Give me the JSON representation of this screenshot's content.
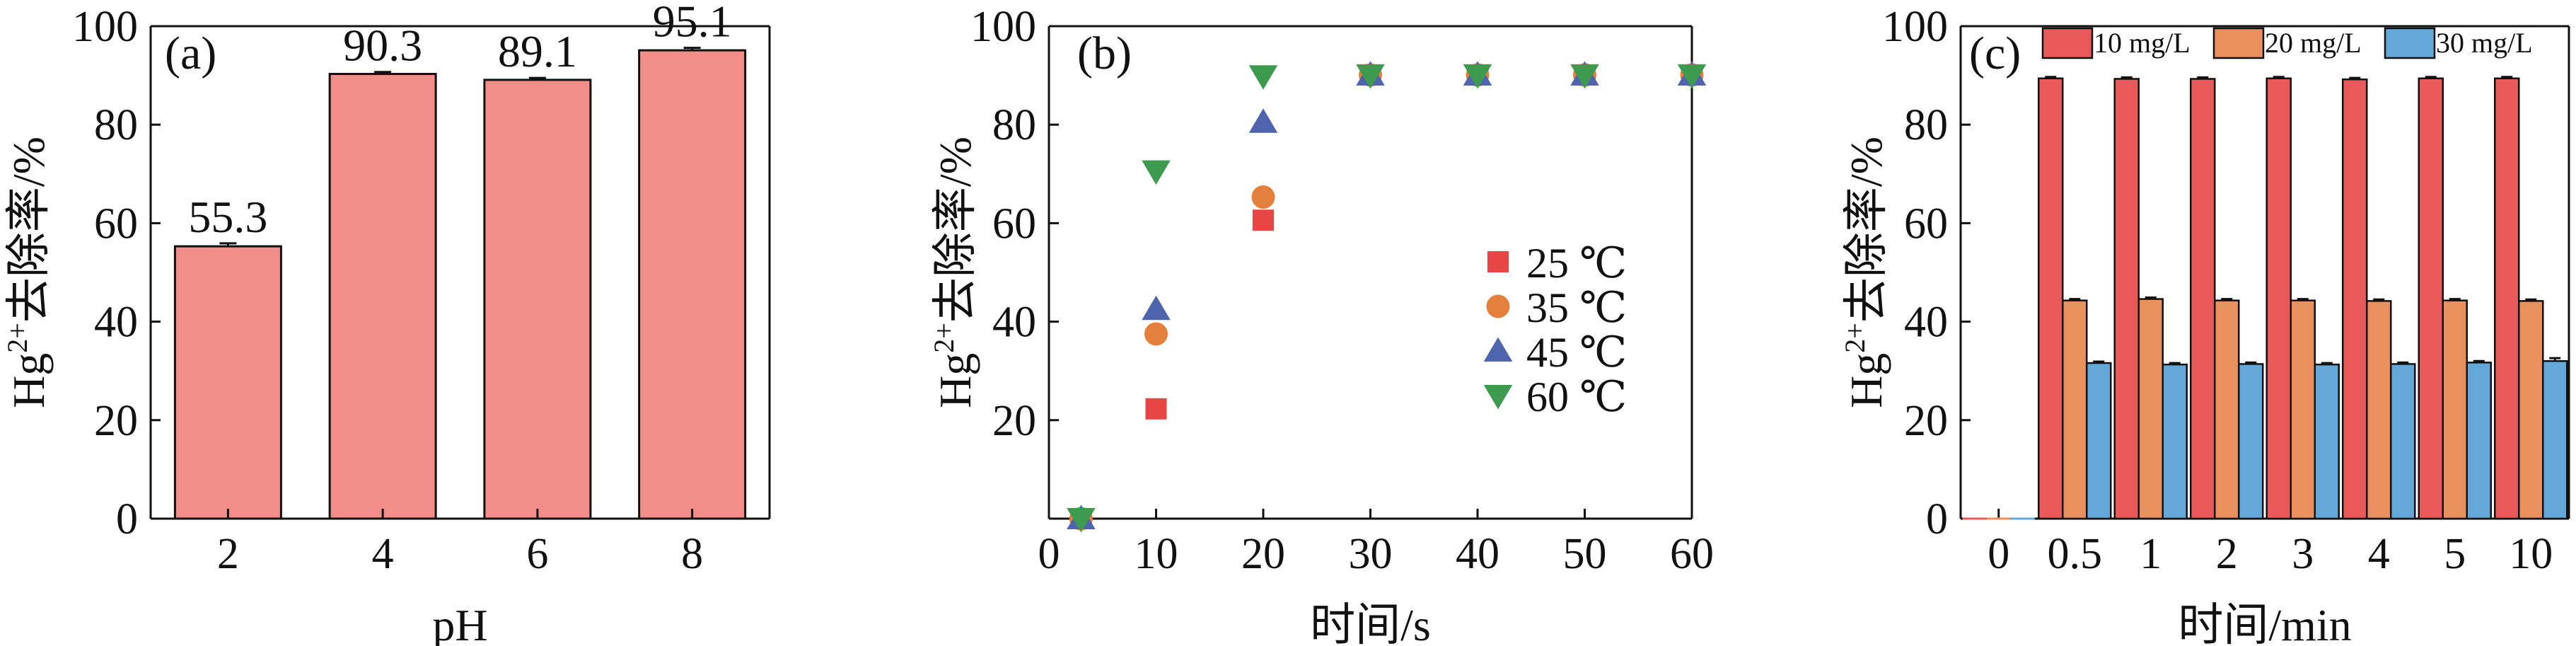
{
  "chart_data": [
    {
      "type": "bar",
      "panel_label": "(a)",
      "xlabel": "pH",
      "ylabel_parts": [
        "Hg",
        "2+",
        "去除率/%"
      ],
      "ylim": [
        0,
        100
      ],
      "yticks": [
        0,
        20,
        40,
        60,
        80,
        100
      ],
      "categories": [
        "2",
        "4",
        "6",
        "8"
      ],
      "values": [
        55.3,
        90.3,
        89.1,
        95.1
      ],
      "value_labels": [
        "55.3",
        "90.3",
        "89.1",
        "95.1"
      ],
      "errors": [
        0.6,
        0.4,
        0.4,
        0.5
      ],
      "bar_color": "#F28D8A"
    },
    {
      "type": "scatter",
      "panel_label": "(b)",
      "xlabel": "时间/s",
      "ylabel_parts": [
        "Hg",
        "2+",
        "去除率/%"
      ],
      "xlim": [
        0,
        60
      ],
      "ylim": [
        0,
        100
      ],
      "xticks": [
        0,
        10,
        20,
        30,
        40,
        50,
        60
      ],
      "yticks": [
        20,
        40,
        60,
        80,
        100
      ],
      "x": [
        3,
        10,
        20,
        30,
        40,
        50,
        60
      ],
      "legend_position": "center-right",
      "series": [
        {
          "name": "25 ℃",
          "marker": "square",
          "color": "#E84646",
          "values": [
            0,
            22.3,
            60.6,
            90.1,
            90.1,
            90.1,
            90.1
          ]
        },
        {
          "name": "35 ℃",
          "marker": "circle",
          "color": "#E47F3C",
          "values": [
            0,
            37.5,
            65.3,
            90.1,
            90.1,
            90.1,
            90.1
          ]
        },
        {
          "name": "45 ℃",
          "marker": "triangle-up",
          "color": "#4E65AE",
          "values": [
            0,
            42.5,
            80.5,
            90.1,
            90.1,
            90.1,
            90.1
          ]
        },
        {
          "name": "60 ℃",
          "marker": "triangle-down",
          "color": "#3E9A4E",
          "values": [
            0,
            70.6,
            89.9,
            90.1,
            90.1,
            90.1,
            90.1
          ]
        }
      ]
    },
    {
      "type": "bar",
      "panel_label": "(c)",
      "xlabel": "时间/min",
      "ylabel_parts": [
        "Hg",
        "2+",
        "去除率/%"
      ],
      "ylim": [
        0,
        100
      ],
      "yticks": [
        0,
        20,
        40,
        60,
        80,
        100
      ],
      "categories": [
        "0",
        "0.5",
        "1",
        "2",
        "3",
        "4",
        "5",
        "10"
      ],
      "legend_position": "top",
      "series": [
        {
          "name": "10 mg/L",
          "color": "#E85A5A",
          "values": [
            0,
            89.4,
            89.3,
            89.3,
            89.4,
            89.2,
            89.4,
            89.4
          ],
          "errors": [
            0,
            0.3,
            0.3,
            0.3,
            0.3,
            0.3,
            0.3,
            0.3
          ]
        },
        {
          "name": "20 mg/L",
          "color": "#E8915E",
          "values": [
            0,
            44.3,
            44.6,
            44.3,
            44.3,
            44.2,
            44.3,
            44.2
          ],
          "errors": [
            0,
            0.3,
            0.3,
            0.3,
            0.3,
            0.3,
            0.3,
            0.3
          ]
        },
        {
          "name": "30 mg/L",
          "color": "#63A8D8",
          "values": [
            0,
            31.6,
            31.3,
            31.4,
            31.3,
            31.4,
            31.7,
            32.0
          ],
          "errors": [
            0,
            0.3,
            0.3,
            0.3,
            0.3,
            0.3,
            0.3,
            0.6
          ]
        }
      ]
    }
  ]
}
